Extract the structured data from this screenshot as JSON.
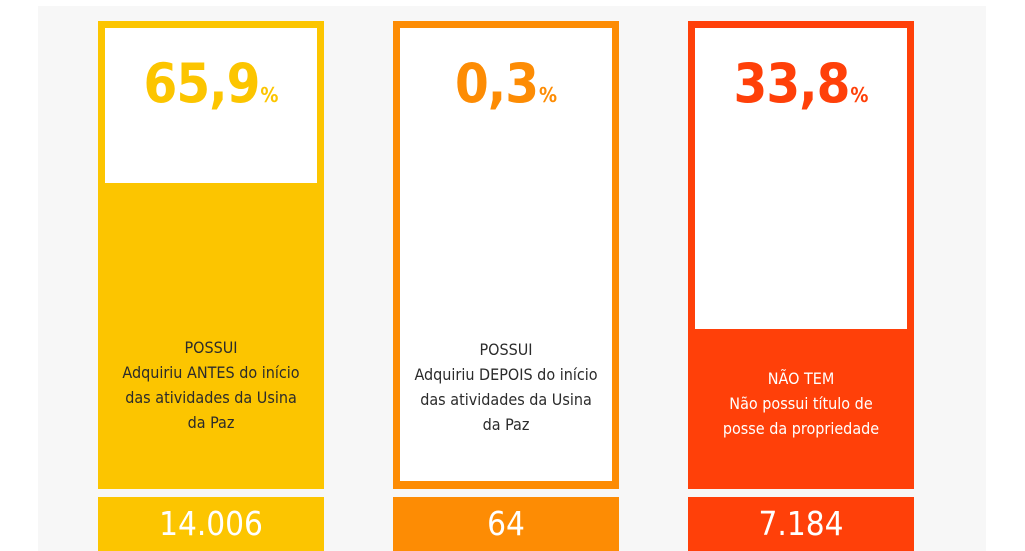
{
  "chart_data": {
    "type": "bar",
    "categories": [
      "POSSUI Adquiriu ANTES do início das atividades da Usina da Paz",
      "POSSUI Adquiriu DEPOIS do início das atividades da Usina da Paz",
      "NÃO TEM Não possui título de posse da propriedade"
    ],
    "values": [
      65.9,
      0.3,
      33.8
    ],
    "counts": [
      14006,
      64,
      7184
    ]
  },
  "columns": [
    {
      "percent": "65,9",
      "unit": "%",
      "fill_fraction": 0.659,
      "head": "POSSUI",
      "body": "Adquiriu ANTES do início das atividades da Usina da Paz",
      "count": "14.006",
      "color": "#fcc500",
      "text_color": "#2b2b2b"
    },
    {
      "percent": "0,3",
      "unit": "%",
      "fill_fraction": 0.003,
      "head": "POSSUI",
      "body": "Adquiriu DEPOIS do início das atividades da Usina da Paz",
      "count": "64",
      "color": "#fd8c04",
      "text_color": "#2b2b2b"
    },
    {
      "percent": "33,8",
      "unit": "%",
      "fill_fraction": 0.338,
      "head": "NÃO TEM",
      "body": "Não possui título de posse da propriedade",
      "count": "7.184",
      "color": "#ff4009",
      "text_color": "#ffffff"
    }
  ]
}
